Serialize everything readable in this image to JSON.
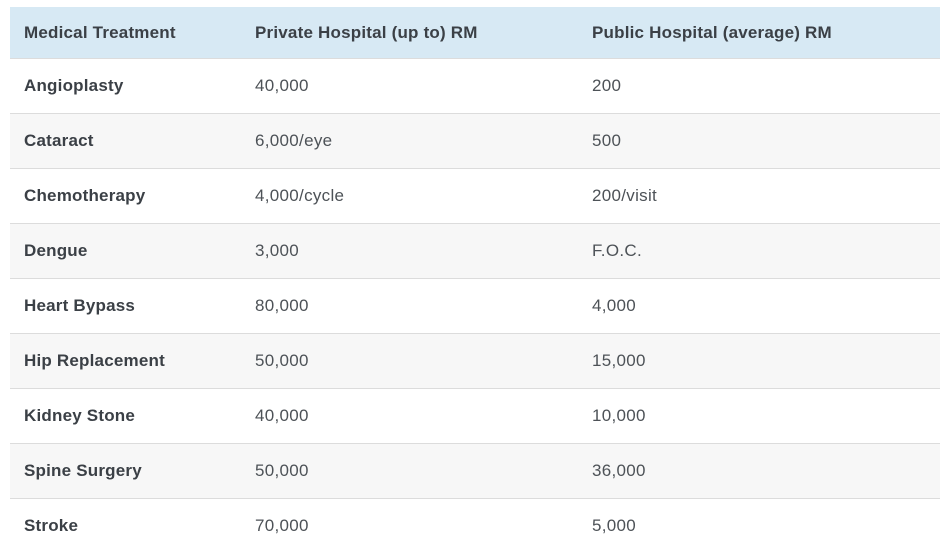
{
  "colors": {
    "header_bg": "#d7e9f4",
    "stripe_bg": "#f7f7f7",
    "border": "#dcdcdc",
    "heading_text": "#3b4046",
    "value_text": "#4d5257"
  },
  "table": {
    "columns": [
      {
        "label": "Medical Treatment"
      },
      {
        "label": "Private Hospital (up to) RM"
      },
      {
        "label": "Public Hospital (average) RM"
      }
    ],
    "rows": [
      {
        "treatment": "Angioplasty",
        "private": "40,000",
        "public": "200"
      },
      {
        "treatment": "Cataract",
        "private": "6,000/eye",
        "public": "500"
      },
      {
        "treatment": "Chemotherapy",
        "private": "4,000/cycle",
        "public": "200/visit"
      },
      {
        "treatment": "Dengue",
        "private": "3,000",
        "public": "F.O.C."
      },
      {
        "treatment": "Heart Bypass",
        "private": "80,000",
        "public": "4,000"
      },
      {
        "treatment": "Hip Replacement",
        "private": "50,000",
        "public": "15,000"
      },
      {
        "treatment": "Kidney Stone",
        "private": "40,000",
        "public": "10,000"
      },
      {
        "treatment": "Spine Surgery",
        "private": "50,000",
        "public": "36,000"
      },
      {
        "treatment": "Stroke",
        "private": "70,000",
        "public": "5,000"
      }
    ]
  },
  "chart_data": {
    "type": "table",
    "title": "",
    "columns": [
      "Medical Treatment",
      "Private Hospital (up to) RM",
      "Public Hospital (average) RM"
    ],
    "rows": [
      [
        "Angioplasty",
        "40,000",
        "200"
      ],
      [
        "Cataract",
        "6,000/eye",
        "500"
      ],
      [
        "Chemotherapy",
        "4,000/cycle",
        "200/visit"
      ],
      [
        "Dengue",
        "3,000",
        "F.O.C."
      ],
      [
        "Heart Bypass",
        "80,000",
        "4,000"
      ],
      [
        "Hip Replacement",
        "50,000",
        "15,000"
      ],
      [
        "Kidney Stone",
        "40,000",
        "10,000"
      ],
      [
        "Spine Surgery",
        "50,000",
        "36,000"
      ],
      [
        "Stroke",
        "70,000",
        "5,000"
      ]
    ],
    "layout": {
      "header_background": "#d7e9f4",
      "striped_rows": true,
      "grid": "horizontal-only"
    }
  }
}
